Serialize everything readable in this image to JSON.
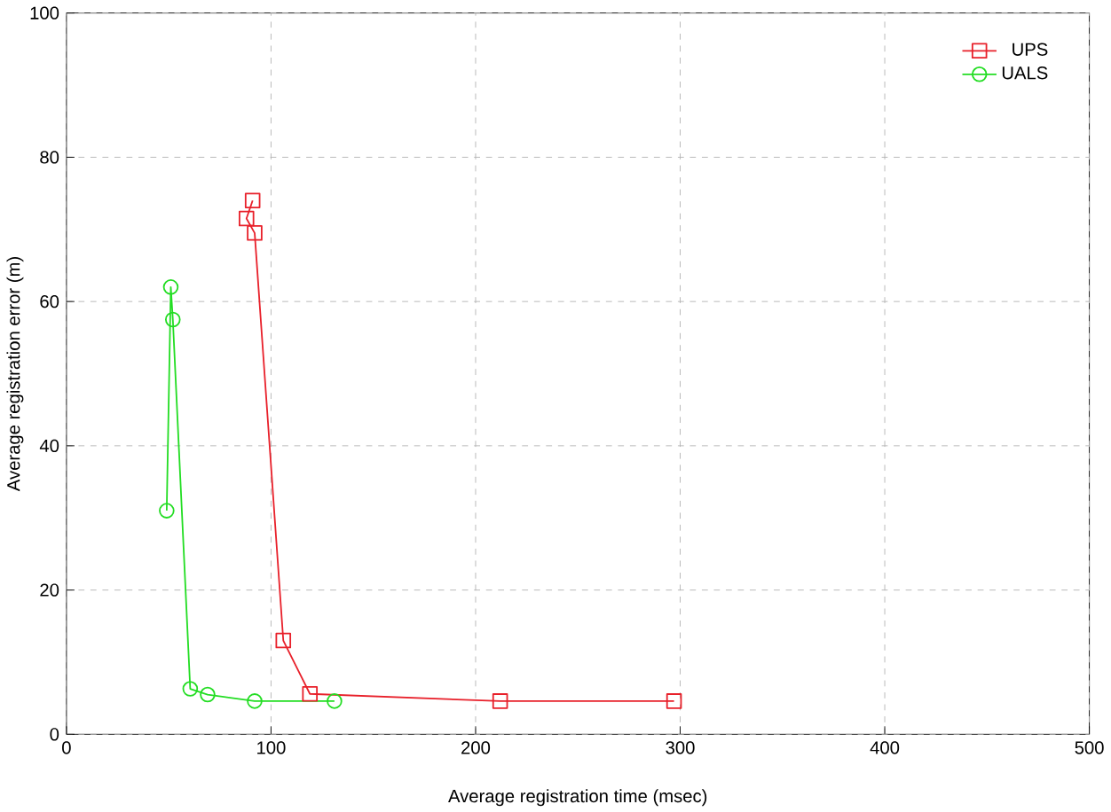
{
  "chart_data": {
    "type": "line",
    "xlabel": "Average registration time (msec)",
    "ylabel": "Average registration error (m)",
    "xlim": [
      0,
      500
    ],
    "ylim": [
      0,
      100
    ],
    "xticks": [
      0,
      100,
      200,
      300,
      400,
      500
    ],
    "yticks": [
      0,
      20,
      40,
      60,
      80,
      100
    ],
    "grid": true,
    "legend": "top right",
    "line_style": "solid",
    "series": [
      {
        "name": "UPS",
        "color": "#e8202a",
        "marker": "square",
        "x": [
          91,
          88,
          92,
          106,
          119,
          212,
          297
        ],
        "values": [
          74,
          71.5,
          69.5,
          13,
          5.6,
          4.6,
          4.6
        ]
      },
      {
        "name": "UALS",
        "color": "#22dd22",
        "marker": "circle",
        "x": [
          49,
          51,
          52,
          60.5,
          69,
          92,
          131
        ],
        "values": [
          31,
          62,
          57.5,
          6.3,
          5.5,
          4.6,
          4.6
        ]
      }
    ]
  }
}
